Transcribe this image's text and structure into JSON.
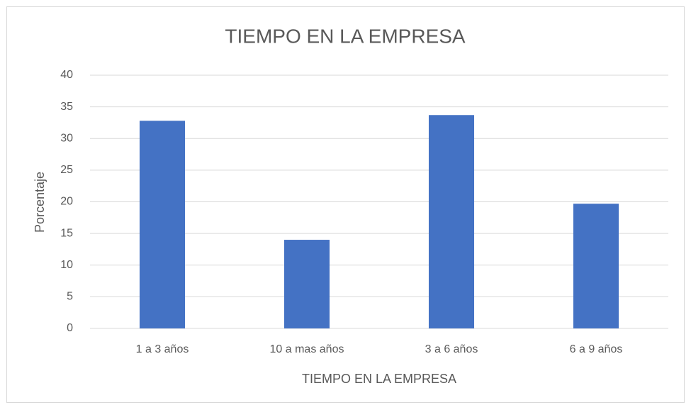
{
  "chart_data": {
    "type": "bar",
    "title": "TIEMPO EN LA EMPRESA",
    "x_label": "TIEMPO EN LA EMPRESA",
    "y_label": "Porcentaje",
    "categories": [
      "1 a 3 años",
      "10 a mas años",
      "3 a 6 años",
      "6 a 9 años"
    ],
    "values": [
      32.8,
      14.0,
      33.7,
      19.7
    ],
    "color": "#4472c4",
    "ylim": [
      0,
      40
    ],
    "yticks": [
      0,
      5,
      10,
      15,
      20,
      25,
      30,
      35,
      40
    ],
    "grid": true
  }
}
